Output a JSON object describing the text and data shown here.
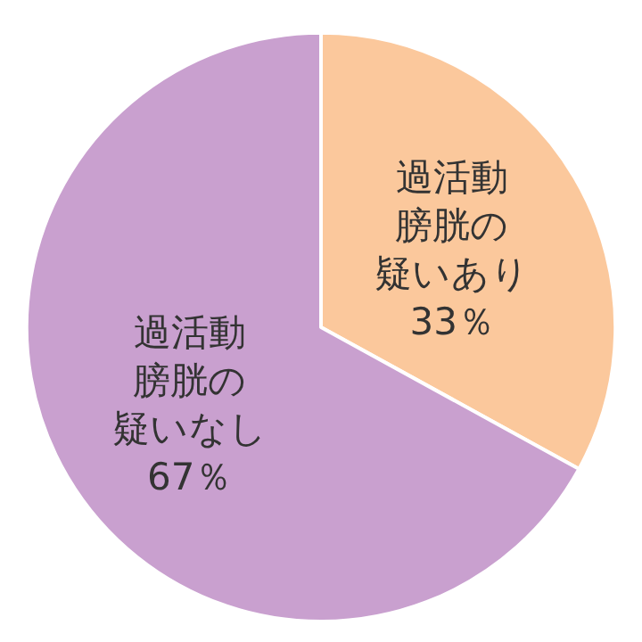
{
  "chart_data": {
    "type": "pie",
    "categories": [
      "過活動膀胱の疑いあり",
      "過活動膀胱の疑いなし"
    ],
    "values": [
      33,
      67
    ],
    "value_labels": [
      "33％",
      "67％"
    ],
    "colors": [
      "#fbc89c",
      "#c9a0cf"
    ],
    "legend": false
  }
}
